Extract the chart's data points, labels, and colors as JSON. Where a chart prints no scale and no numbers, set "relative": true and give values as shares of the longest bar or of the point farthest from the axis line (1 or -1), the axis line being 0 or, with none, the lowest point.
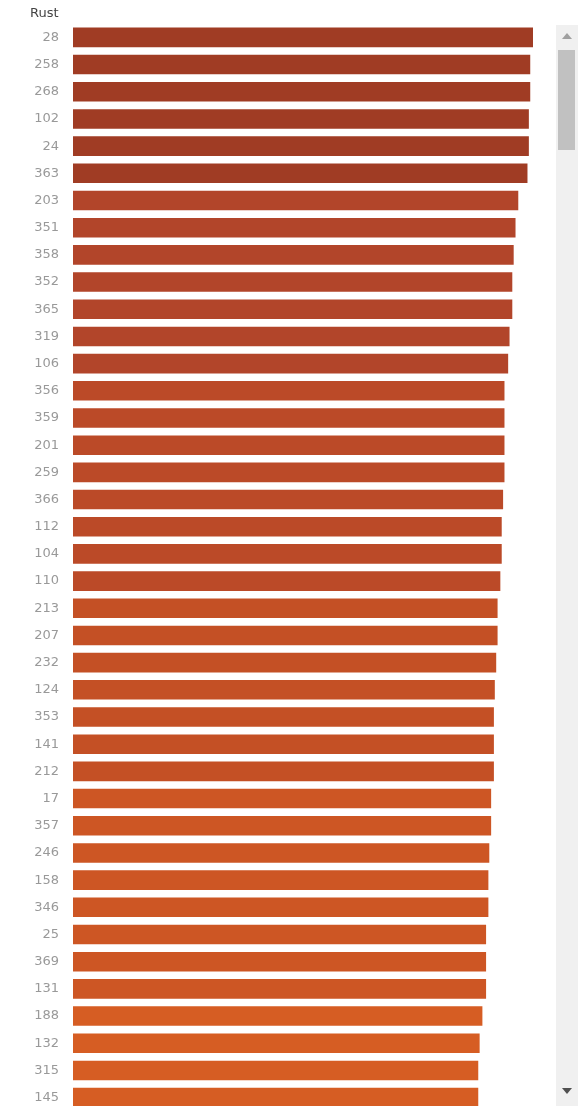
{
  "chart_data": {
    "type": "bar",
    "orientation": "horizontal",
    "relative": true,
    "title": "Rust",
    "categories": [
      "28",
      "258",
      "268",
      "102",
      "24",
      "363",
      "203",
      "351",
      "358",
      "352",
      "365",
      "319",
      "106",
      "356",
      "359",
      "201",
      "259",
      "366",
      "112",
      "104",
      "110",
      "213",
      "207",
      "232",
      "124",
      "353",
      "141",
      "212",
      "17",
      "357",
      "246",
      "158",
      "346",
      "25",
      "369",
      "131",
      "188",
      "132",
      "315",
      "145"
    ],
    "values": [
      1,
      0.994,
      0.994,
      0.991,
      0.991,
      0.988,
      0.968,
      0.962,
      0.958,
      0.955,
      0.955,
      0.949,
      0.946,
      0.938,
      0.938,
      0.938,
      0.938,
      0.935,
      0.932,
      0.932,
      0.929,
      0.923,
      0.923,
      0.92,
      0.917,
      0.915,
      0.915,
      0.915,
      0.909,
      0.909,
      0.905,
      0.903,
      0.903,
      0.898,
      0.898,
      0.898,
      0.89,
      0.884,
      0.881,
      0.881
    ],
    "colors": [
      "#a03c24",
      "#a03c24",
      "#a03c24",
      "#a03c24",
      "#a03c24",
      "#a03c24",
      "#b2452a",
      "#b2452a",
      "#b2452a",
      "#b2452a",
      "#b2452a",
      "#b2452a",
      "#b2452a",
      "#bb4a28",
      "#bb4a28",
      "#bb4a28",
      "#bb4a28",
      "#bb4a28",
      "#bb4a28",
      "#bb4a28",
      "#bb4a28",
      "#c45025",
      "#c45025",
      "#c45025",
      "#c45025",
      "#c45025",
      "#c45025",
      "#c45025",
      "#cd5624",
      "#cd5624",
      "#cd5624",
      "#cd5624",
      "#cd5624",
      "#cd5624",
      "#cd5624",
      "#cd5624",
      "#d65d23",
      "#d65d23",
      "#d65d23",
      "#d65d23"
    ]
  }
}
